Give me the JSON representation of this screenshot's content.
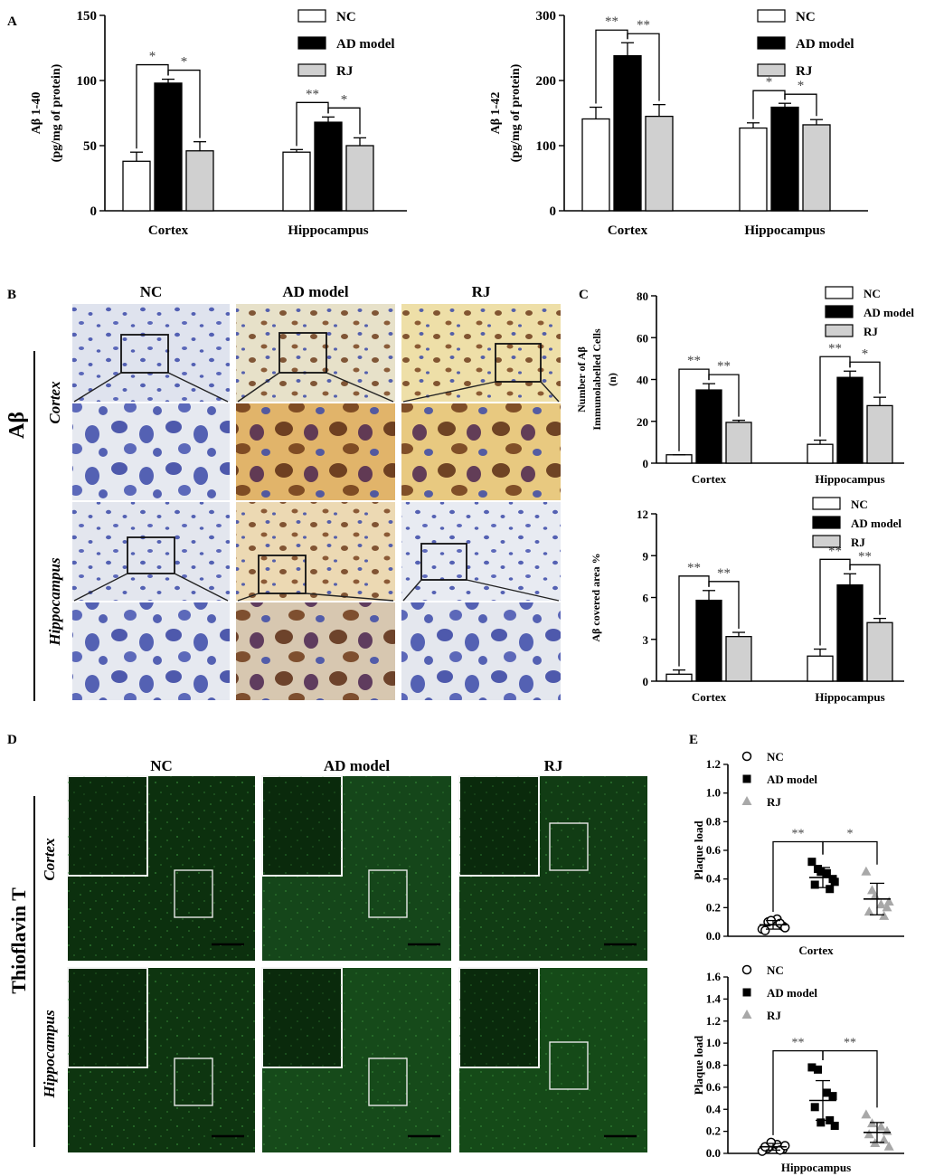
{
  "panel_letters": {
    "a": "A",
    "b": "B",
    "c": "C",
    "d": "D",
    "e": "E"
  },
  "legend": {
    "nc": "NC",
    "ad": "AD model",
    "rj": "RJ"
  },
  "micro_b": {
    "col_labels": [
      "NC",
      "AD model",
      "RJ"
    ],
    "row_labels": [
      "Cortex",
      "Hippocampus"
    ],
    "side_label": "Aβ"
  },
  "micro_d": {
    "col_labels": [
      "NC",
      "AD model",
      "RJ"
    ],
    "row_labels": [
      "Cortex",
      "Hippocampus"
    ],
    "side_label": "Thioflavin T"
  },
  "colors": {
    "nc": "#ffffff",
    "ad": "#000000",
    "rj": "#d0d0d0",
    "rj_marker": "#a8a8a8",
    "tissue_bg": "#dcdfe6",
    "nuclei": "#3a49a8",
    "brown": "#a26a30",
    "fluor": "#0f3a12"
  },
  "chart_data": [
    {
      "id": "A1",
      "type": "bar",
      "ylabel_line1": "Aβ 1-40",
      "ylabel_line2": "(pg/mg of protein)",
      "categories": [
        "Cortex",
        "Hippocampus"
      ],
      "yticks": [
        0,
        50,
        100,
        150
      ],
      "ylim": [
        0,
        150
      ],
      "series": [
        {
          "name": "NC",
          "values": [
            38,
            45
          ],
          "errors": [
            7,
            2
          ]
        },
        {
          "name": "AD model",
          "values": [
            98,
            68
          ],
          "errors": [
            3,
            4
          ]
        },
        {
          "name": "RJ",
          "values": [
            46,
            50
          ],
          "errors": [
            7,
            6
          ]
        }
      ],
      "significance": [
        {
          "group": 0,
          "pair": [
            0,
            1
          ],
          "label": "*"
        },
        {
          "group": 0,
          "pair": [
            1,
            2
          ],
          "label": "*"
        },
        {
          "group": 1,
          "pair": [
            0,
            1
          ],
          "label": "**"
        },
        {
          "group": 1,
          "pair": [
            1,
            2
          ],
          "label": "*"
        }
      ]
    },
    {
      "id": "A2",
      "type": "bar",
      "ylabel_line1": "Aβ 1-42",
      "ylabel_line2": "(pg/mg of protein)",
      "categories": [
        "Cortex",
        "Hippocampus"
      ],
      "yticks": [
        0,
        100,
        200,
        300
      ],
      "ylim": [
        0,
        300
      ],
      "series": [
        {
          "name": "NC",
          "values": [
            141,
            127
          ],
          "errors": [
            18,
            8
          ]
        },
        {
          "name": "AD model",
          "values": [
            238,
            159
          ],
          "errors": [
            20,
            6
          ]
        },
        {
          "name": "RJ",
          "values": [
            145,
            132
          ],
          "errors": [
            18,
            8
          ]
        }
      ],
      "significance": [
        {
          "group": 0,
          "pair": [
            0,
            1
          ],
          "label": "**"
        },
        {
          "group": 0,
          "pair": [
            1,
            2
          ],
          "label": "**"
        },
        {
          "group": 1,
          "pair": [
            0,
            1
          ],
          "label": "*"
        },
        {
          "group": 1,
          "pair": [
            1,
            2
          ],
          "label": "*"
        }
      ]
    },
    {
      "id": "C1",
      "type": "bar",
      "ylabel_line1": "Number of Aβ",
      "ylabel_line2": "Immunolabelled Cells",
      "ylabel_line3": "(n)",
      "categories": [
        "Cortex",
        "Hippocampus"
      ],
      "yticks": [
        0,
        20,
        40,
        60,
        80
      ],
      "ylim": [
        0,
        80
      ],
      "series": [
        {
          "name": "NC",
          "values": [
            4,
            9
          ],
          "errors": [
            0,
            2
          ]
        },
        {
          "name": "AD model",
          "values": [
            35,
            41
          ],
          "errors": [
            3,
            3
          ]
        },
        {
          "name": "RJ",
          "values": [
            19.5,
            27.5
          ],
          "errors": [
            1,
            4
          ]
        }
      ],
      "significance": [
        {
          "group": 0,
          "pair": [
            0,
            1
          ],
          "label": "**"
        },
        {
          "group": 0,
          "pair": [
            1,
            2
          ],
          "label": "**"
        },
        {
          "group": 1,
          "pair": [
            0,
            1
          ],
          "label": "**"
        },
        {
          "group": 1,
          "pair": [
            1,
            2
          ],
          "label": "*"
        }
      ]
    },
    {
      "id": "C2",
      "type": "bar",
      "ylabel_line1": "Aβ covered area %",
      "categories": [
        "Cortex",
        "Hippocampus"
      ],
      "yticks": [
        0,
        3,
        6,
        9,
        12
      ],
      "ylim": [
        0,
        12
      ],
      "series": [
        {
          "name": "NC",
          "values": [
            0.5,
            1.8
          ],
          "errors": [
            0.3,
            0.5
          ]
        },
        {
          "name": "AD model",
          "values": [
            5.8,
            6.9
          ],
          "errors": [
            0.7,
            0.8
          ]
        },
        {
          "name": "RJ",
          "values": [
            3.2,
            4.2
          ],
          "errors": [
            0.3,
            0.3
          ]
        }
      ],
      "significance": [
        {
          "group": 0,
          "pair": [
            0,
            1
          ],
          "label": "**"
        },
        {
          "group": 0,
          "pair": [
            1,
            2
          ],
          "label": "**"
        },
        {
          "group": 1,
          "pair": [
            0,
            1
          ],
          "label": "**"
        },
        {
          "group": 1,
          "pair": [
            1,
            2
          ],
          "label": "**"
        }
      ]
    },
    {
      "id": "E1",
      "type": "scatter",
      "ylabel": "Plaque load",
      "xlabel": "Cortex",
      "yticks": [
        0.0,
        0.2,
        0.4,
        0.6,
        0.8,
        1.0,
        1.2
      ],
      "ylim": [
        0,
        1.2
      ],
      "groups": [
        {
          "name": "NC",
          "marker": "circle",
          "points": [
            0.05,
            0.1,
            0.12,
            0.07,
            0.04,
            0.09,
            0.11,
            0.06
          ],
          "mean": 0.08,
          "sd": 0.03
        },
        {
          "name": "AD model",
          "marker": "square",
          "points": [
            0.52,
            0.47,
            0.44,
            0.4,
            0.36,
            0.33,
            0.45,
            0.38
          ],
          "mean": 0.41,
          "sd": 0.07
        },
        {
          "name": "RJ",
          "marker": "triangle",
          "points": [
            0.45,
            0.32,
            0.22,
            0.2,
            0.17,
            0.14,
            0.28,
            0.24
          ],
          "mean": 0.26,
          "sd": 0.11
        }
      ],
      "significance": [
        {
          "pair": [
            0,
            1
          ],
          "label": "**"
        },
        {
          "pair": [
            1,
            2
          ],
          "label": "*"
        }
      ]
    },
    {
      "id": "E2",
      "type": "scatter",
      "ylabel": "Plaque load",
      "xlabel": "Hippocampus",
      "yticks": [
        0.0,
        0.2,
        0.4,
        0.6,
        0.8,
        1.0,
        1.2,
        1.4,
        1.6
      ],
      "ylim": [
        0,
        1.6
      ],
      "groups": [
        {
          "name": "NC",
          "marker": "circle",
          "points": [
            0.02,
            0.05,
            0.08,
            0.04,
            0.06,
            0.03,
            0.1,
            0.07
          ],
          "mean": 0.06,
          "sd": 0.03
        },
        {
          "name": "AD model",
          "marker": "square",
          "points": [
            0.78,
            0.76,
            0.55,
            0.52,
            0.42,
            0.3,
            0.28,
            0.25
          ],
          "mean": 0.48,
          "sd": 0.18
        },
        {
          "name": "RJ",
          "marker": "triangle",
          "points": [
            0.35,
            0.27,
            0.24,
            0.2,
            0.17,
            0.12,
            0.09,
            0.06
          ],
          "mean": 0.19,
          "sd": 0.09
        }
      ],
      "significance": [
        {
          "pair": [
            0,
            1
          ],
          "label": "**"
        },
        {
          "pair": [
            1,
            2
          ],
          "label": "**"
        }
      ]
    }
  ]
}
